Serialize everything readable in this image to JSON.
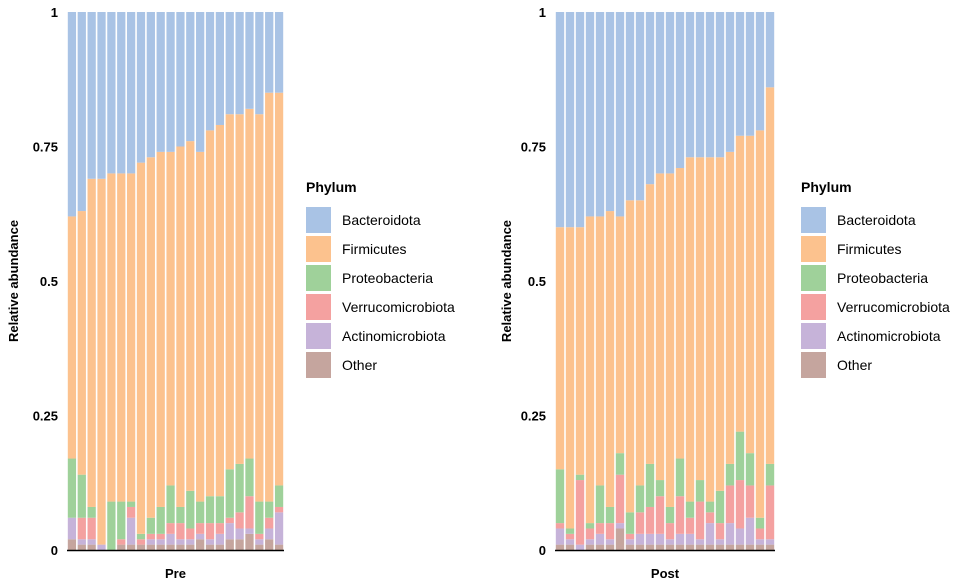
{
  "chart_data": [
    {
      "type": "bar",
      "stacked": true,
      "xlabel": "Pre",
      "ylabel": "Relative abundance",
      "ylim": [
        0,
        1
      ],
      "yticks": [
        0,
        0.25,
        0.5,
        0.75,
        1
      ],
      "ytick_labels": [
        "0",
        "0.25",
        "0.5",
        "0.75",
        "1"
      ],
      "legend": {
        "title": "Phylum",
        "placement": "right"
      },
      "series": [
        {
          "name": "Other",
          "color": "#c5a59e",
          "values": [
            0.02,
            0.01,
            0.01,
            0,
            0,
            0.01,
            0.01,
            0.01,
            0.01,
            0.01,
            0.01,
            0.01,
            0.01,
            0.02,
            0.01,
            0.01,
            0.02,
            0.02,
            0.03,
            0.01,
            0.02,
            0.01
          ]
        },
        {
          "name": "Actinomicrobiota",
          "color": "#c6b3d9",
          "values": [
            0.04,
            0.01,
            0.01,
            0.01,
            0,
            0,
            0.05,
            0,
            0.01,
            0.01,
            0.02,
            0.01,
            0.01,
            0.01,
            0.01,
            0.02,
            0.03,
            0.02,
            0.01,
            0.01,
            0.02,
            0.06
          ]
        },
        {
          "name": "Verrucomicrobiota",
          "color": "#f4a1a0",
          "values": [
            0,
            0.04,
            0.04,
            0,
            0,
            0.01,
            0.02,
            0.01,
            0.01,
            0.01,
            0.02,
            0.03,
            0.02,
            0.02,
            0.03,
            0.02,
            0.01,
            0.03,
            0.06,
            0.01,
            0.02,
            0.01
          ]
        },
        {
          "name": "Proteobacteria",
          "color": "#9fd19a",
          "values": [
            0.11,
            0.08,
            0.02,
            0,
            0.09,
            0.07,
            0.01,
            0.01,
            0.03,
            0.05,
            0.07,
            0.03,
            0.07,
            0.04,
            0.05,
            0.05,
            0.09,
            0.09,
            0.07,
            0.06,
            0.03,
            0.04
          ]
        },
        {
          "name": "Firmicutes",
          "color": "#fcc28e",
          "values": [
            0.45,
            0.49,
            0.61,
            0.68,
            0.61,
            0.61,
            0.61,
            0.69,
            0.67,
            0.66,
            0.62,
            0.67,
            0.65,
            0.65,
            0.68,
            0.69,
            0.66,
            0.65,
            0.65,
            0.72,
            0.76,
            0.73
          ]
        },
        {
          "name": "Bacteroidota",
          "color": "#a9c3e5",
          "values": [
            0.38,
            0.37,
            0.31,
            0.31,
            0.3,
            0.3,
            0.3,
            0.28,
            0.27,
            0.26,
            0.26,
            0.25,
            0.24,
            0.26,
            0.22,
            0.21,
            0.19,
            0.19,
            0.18,
            0.19,
            0.15,
            0.15
          ]
        }
      ]
    },
    {
      "type": "bar",
      "stacked": true,
      "xlabel": "Post",
      "ylabel": "Relative abundance",
      "ylim": [
        0,
        1
      ],
      "yticks": [
        0,
        0.25,
        0.5,
        0.75,
        1
      ],
      "ytick_labels": [
        "0",
        "0.25",
        "0.5",
        "0.75",
        "1"
      ],
      "legend": {
        "title": "Phylum",
        "placement": "right"
      },
      "series": [
        {
          "name": "Other",
          "color": "#c5a59e",
          "values": [
            0.01,
            0.01,
            0,
            0.01,
            0.01,
            0.01,
            0.04,
            0.01,
            0.01,
            0.01,
            0.01,
            0.01,
            0.01,
            0.01,
            0.01,
            0.01,
            0.01,
            0.01,
            0.01,
            0.01,
            0.01,
            0.01
          ]
        },
        {
          "name": "Actinomicrobiota",
          "color": "#c6b3d9",
          "values": [
            0.03,
            0.01,
            0.01,
            0.01,
            0.02,
            0.01,
            0.01,
            0.01,
            0.02,
            0.02,
            0.02,
            0.01,
            0.02,
            0.02,
            0.01,
            0.04,
            0.01,
            0.04,
            0.03,
            0.05,
            0.01,
            0.01
          ]
        },
        {
          "name": "Verrucomicrobiota",
          "color": "#f4a1a0",
          "values": [
            0.01,
            0.01,
            0.12,
            0.02,
            0.02,
            0.03,
            0.09,
            0.01,
            0.04,
            0.05,
            0.07,
            0.03,
            0.07,
            0.03,
            0.07,
            0.02,
            0.03,
            0.07,
            0.09,
            0.06,
            0.02,
            0.1
          ]
        },
        {
          "name": "Proteobacteria",
          "color": "#9fd19a",
          "values": [
            0.1,
            0.01,
            0.01,
            0.01,
            0.07,
            0.03,
            0.04,
            0.04,
            0.05,
            0.08,
            0.03,
            0.03,
            0.07,
            0.03,
            0.04,
            0.02,
            0.06,
            0.04,
            0.09,
            0.06,
            0.02,
            0.04
          ]
        },
        {
          "name": "Firmicutes",
          "color": "#fcc28e",
          "values": [
            0.45,
            0.56,
            0.46,
            0.57,
            0.5,
            0.55,
            0.44,
            0.58,
            0.53,
            0.52,
            0.57,
            0.62,
            0.54,
            0.64,
            0.6,
            0.64,
            0.62,
            0.58,
            0.55,
            0.59,
            0.72,
            0.7
          ]
        },
        {
          "name": "Bacteroidota",
          "color": "#a9c3e5",
          "values": [
            0.4,
            0.4,
            0.4,
            0.38,
            0.38,
            0.37,
            0.38,
            0.35,
            0.35,
            0.32,
            0.3,
            0.3,
            0.29,
            0.27,
            0.27,
            0.27,
            0.27,
            0.26,
            0.23,
            0.23,
            0.22,
            0.14
          ]
        }
      ]
    }
  ]
}
